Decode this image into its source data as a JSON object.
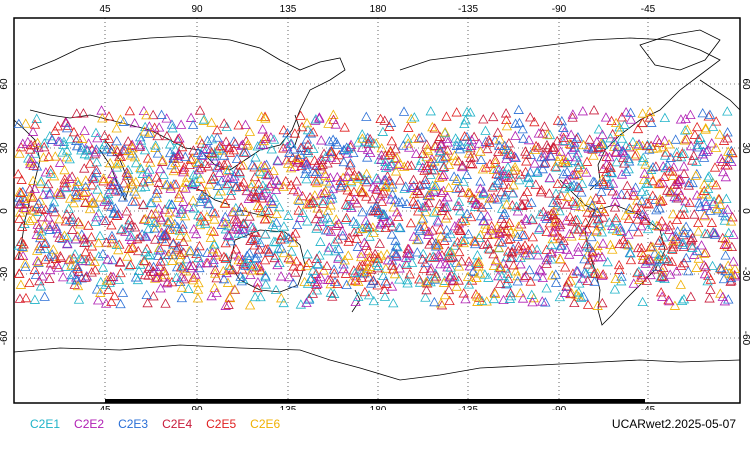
{
  "map": {
    "type": "world-projection",
    "projection": "equirectangular, central longitude 180",
    "longitude_ticks": [
      "45",
      "90",
      "135",
      "180",
      "-135",
      "-90",
      "-45"
    ],
    "latitude_ticks": [
      "60",
      "30",
      "0",
      "-30",
      "-60"
    ],
    "gridlines": "dotted",
    "marker_shape": "open-triangle",
    "marker_band_approx_lat": [
      -45,
      48
    ]
  },
  "legend": [
    {
      "label": "C2E1",
      "color": "#1fb3c8"
    },
    {
      "label": "C2E2",
      "color": "#b01fb4"
    },
    {
      "label": "C2E3",
      "color": "#2a6fd6"
    },
    {
      "label": "C2E4",
      "color": "#c81a3a"
    },
    {
      "label": "C2E5",
      "color": "#e01f1f"
    },
    {
      "label": "C2E6",
      "color": "#f0b000"
    }
  ],
  "stamp": "UCARwet2.2025-05-07"
}
